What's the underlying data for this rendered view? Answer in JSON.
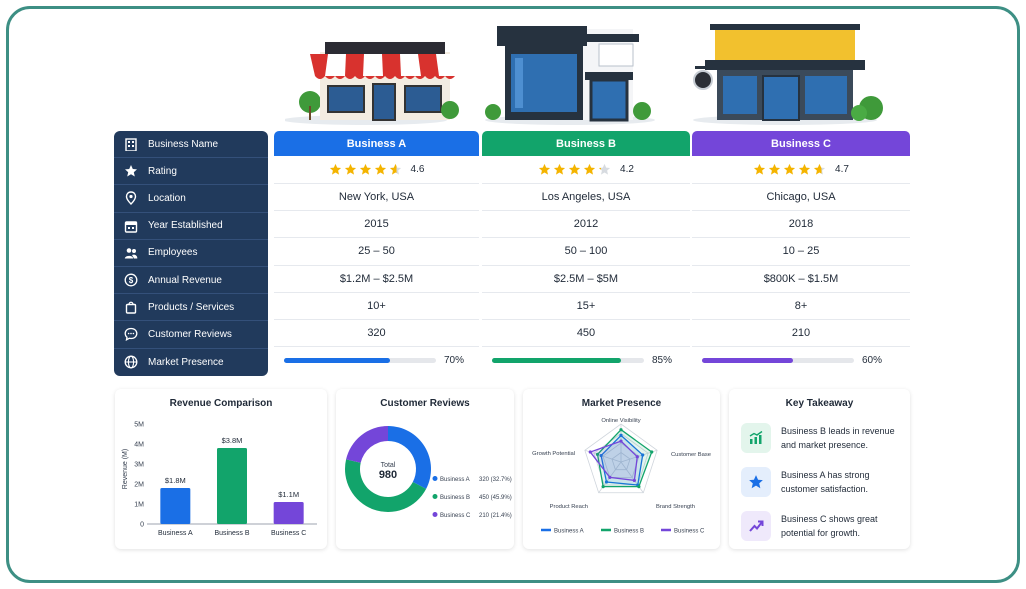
{
  "table": {
    "row_labels": [
      {
        "label": "Business Name",
        "icon": "building-icon"
      },
      {
        "label": "Rating",
        "icon": "star-icon"
      },
      {
        "label": "Location",
        "icon": "location-pin-icon"
      },
      {
        "label": "Year Established",
        "icon": "calendar-icon"
      },
      {
        "label": "Employees",
        "icon": "people-icon"
      },
      {
        "label": "Annual Revenue",
        "icon": "dollar-icon"
      },
      {
        "label": "Products / Services",
        "icon": "shopping-bag-icon"
      },
      {
        "label": "Customer Reviews",
        "icon": "chat-bubble-icon"
      },
      {
        "label": "Market Presence",
        "icon": "globe-icon"
      }
    ],
    "businesses": [
      {
        "name": "Business A",
        "color": "#1a6fe6",
        "rating": 4.6,
        "rating_label": "4.6",
        "location": "New York, USA",
        "year": "2015",
        "employees": "25 – 50",
        "revenue": "$1.2M – $2.5M",
        "products": "10+",
        "reviews": "320",
        "presence": 0.7,
        "presence_label": "70%"
      },
      {
        "name": "Business B",
        "color": "#12a46b",
        "rating": 4.2,
        "rating_label": "4.2",
        "location": "Los Angeles, USA",
        "year": "2012",
        "employees": "50 – 100",
        "revenue": "$2.5M – $5M",
        "products": "15+",
        "reviews": "450",
        "presence": 0.85,
        "presence_label": "85%"
      },
      {
        "name": "Business C",
        "color": "#7446d9",
        "rating": 4.7,
        "rating_label": "4.7",
        "location": "Chicago, USA",
        "year": "2018",
        "employees": "10 – 25",
        "revenue": "$800K – $1.5M",
        "products": "8+",
        "reviews": "210",
        "presence": 0.6,
        "presence_label": "60%"
      }
    ]
  },
  "chart_data": [
    {
      "type": "bar",
      "title": "Revenue Comparison",
      "categories": [
        "Business A",
        "Business B",
        "Business C"
      ],
      "values": [
        1.8,
        3.8,
        1.1
      ],
      "value_labels": [
        "$1.8M",
        "$3.8M",
        "$1.1M"
      ],
      "colors": [
        "#1a6fe6",
        "#12a46b",
        "#7446d9"
      ],
      "ylabel": "Revenue (M)",
      "yticks": [
        "0",
        "1M",
        "2M",
        "3M",
        "4M",
        "5M"
      ],
      "ylim": [
        0,
        5
      ]
    },
    {
      "type": "pie",
      "title": "Customer Reviews",
      "center_label": "Total",
      "center_value": "980",
      "slices": [
        {
          "name": "Business A",
          "value": 320,
          "label": "320 (32.7%)",
          "color": "#1a6fe6"
        },
        {
          "name": "Business B",
          "value": 450,
          "label": "450 (45.9%)",
          "color": "#12a46b"
        },
        {
          "name": "Business C",
          "value": 210,
          "label": "210 (21.4%)",
          "color": "#7446d9"
        }
      ]
    },
    {
      "type": "radar",
      "title": "Market Presence",
      "axes": [
        "Online Visibility",
        "Customer Base",
        "Brand Strength",
        "Product Reach",
        "Growth Potential"
      ],
      "series": [
        {
          "name": "Business A",
          "color": "#1a6fe6",
          "values": [
            0.7,
            0.6,
            0.75,
            0.65,
            0.55
          ]
        },
        {
          "name": "Business B",
          "color": "#12a46b",
          "values": [
            0.85,
            0.85,
            0.8,
            0.8,
            0.65
          ]
        },
        {
          "name": "Business C",
          "color": "#7446d9",
          "values": [
            0.55,
            0.45,
            0.6,
            0.5,
            0.85
          ]
        }
      ]
    }
  ],
  "takeaway": {
    "title": "Key Takeaway",
    "items": [
      {
        "text": "Business B leads in revenue and market presence.",
        "line1": "Business B leads in revenue",
        "line2": "and market presence.",
        "icon": "bar-chart-up-icon",
        "color": "#12a46b",
        "bg": "#e3f5ec"
      },
      {
        "text": "Business A has strong customer satisfaction.",
        "line1": "Business A has strong",
        "line2": "customer satisfaction.",
        "icon": "star-icon",
        "color": "#1a6fe6",
        "bg": "#e4eefc"
      },
      {
        "text": "Business C shows great potential for growth.",
        "line1": "Business C shows great",
        "line2": "potential for growth.",
        "icon": "trend-up-icon",
        "color": "#7446d9",
        "bg": "#efe9fb"
      }
    ]
  }
}
